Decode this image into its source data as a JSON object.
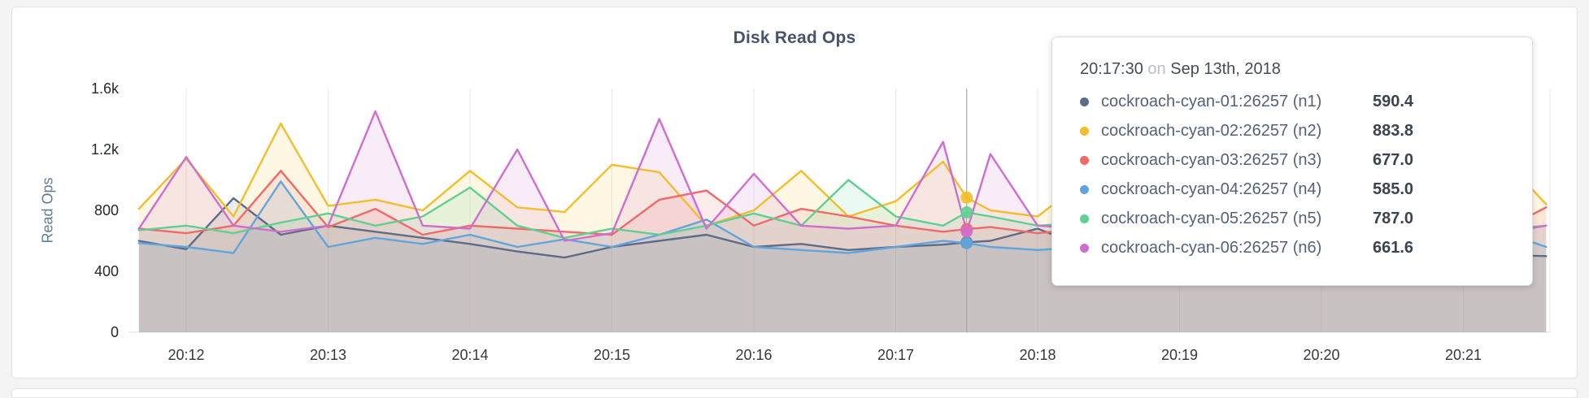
{
  "page": {
    "background_color": "#f4f4f4"
  },
  "panel": {
    "background_color": "#ffffff",
    "border_color": "#e3e3e3",
    "title_color": "#46536b"
  },
  "chart_data": {
    "type": "area",
    "title": "Disk Read Ops",
    "xlabel": "",
    "ylabel": "Read Ops",
    "ylim": [
      0,
      1600
    ],
    "grid": "vertical-only",
    "legend_position": "tooltip",
    "x_unit": "seconds since 20:11:40 on Sep 13th, 2018",
    "x": [
      0,
      20,
      40,
      60,
      80,
      100,
      120,
      140,
      160,
      180,
      200,
      220,
      240,
      260,
      280,
      300,
      320,
      340,
      350,
      360,
      380,
      400,
      420,
      440,
      460,
      480,
      500,
      520,
      540,
      560,
      580,
      595
    ],
    "x_ticks": [
      {
        "t": 20,
        "label": "20:12"
      },
      {
        "t": 80,
        "label": "20:13"
      },
      {
        "t": 140,
        "label": "20:14"
      },
      {
        "t": 200,
        "label": "20:15"
      },
      {
        "t": 260,
        "label": "20:16"
      },
      {
        "t": 320,
        "label": "20:17"
      },
      {
        "t": 380,
        "label": "20:18"
      },
      {
        "t": 440,
        "label": "20:19"
      },
      {
        "t": 500,
        "label": "20:20"
      },
      {
        "t": 560,
        "label": "20:21"
      }
    ],
    "y_ticks": [
      {
        "value": 0,
        "label": "0"
      },
      {
        "value": 400,
        "label": "400"
      },
      {
        "value": 800,
        "label": "800"
      },
      {
        "value": 1200,
        "label": "1.2k"
      },
      {
        "value": 1600,
        "label": "1.6k"
      }
    ],
    "crosshair_t": 350,
    "series": [
      {
        "id": "n1",
        "name": "cockroach-cyan-01:26257 (n1)",
        "color": "#5F6C87",
        "values": [
          600,
          545,
          880,
          640,
          700,
          660,
          620,
          580,
          530,
          490,
          560,
          600,
          640,
          560,
          580,
          540,
          560,
          575,
          590.4,
          600,
          680,
          560,
          540,
          560,
          520,
          555,
          530,
          545,
          560,
          500,
          505,
          500
        ]
      },
      {
        "id": "n2",
        "name": "cockroach-cyan-02:26257 (n2)",
        "color": "#F2BE2C",
        "values": [
          810,
          1140,
          760,
          1370,
          830,
          870,
          800,
          1060,
          820,
          790,
          1100,
          1050,
          700,
          800,
          1060,
          760,
          860,
          1120,
          883.8,
          800,
          760,
          1000,
          900,
          850,
          950,
          800,
          900,
          850,
          800,
          1000,
          1090,
          840
        ]
      },
      {
        "id": "n3",
        "name": "cockroach-cyan-03:26257 (n3)",
        "color": "#F16969",
        "values": [
          680,
          650,
          700,
          1060,
          690,
          810,
          640,
          700,
          680,
          660,
          640,
          870,
          930,
          700,
          810,
          760,
          700,
          660,
          677,
          690,
          650,
          680,
          700,
          720,
          690,
          660,
          700,
          680,
          650,
          930,
          700,
          820
        ]
      },
      {
        "id": "n4",
        "name": "cockroach-cyan-04:26257 (n4)",
        "color": "#61A5DC",
        "values": [
          585,
          560,
          520,
          990,
          560,
          620,
          580,
          640,
          560,
          610,
          560,
          640,
          740,
          560,
          540,
          520,
          560,
          600,
          585,
          560,
          540,
          560,
          580,
          560,
          540,
          570,
          560,
          550,
          560,
          620,
          640,
          560
        ]
      },
      {
        "id": "n5",
        "name": "cockroach-cyan-05:26257 (n5)",
        "color": "#5FD092",
        "values": [
          670,
          700,
          650,
          720,
          780,
          700,
          760,
          950,
          700,
          620,
          680,
          640,
          700,
          780,
          700,
          1000,
          760,
          700,
          787,
          760,
          700,
          720,
          680,
          700,
          720,
          690,
          700,
          680,
          700,
          650,
          680,
          700
        ]
      },
      {
        "id": "n6",
        "name": "cockroach-cyan-06:26257 (n6)",
        "color": "#CF6ECE",
        "values": [
          680,
          1150,
          700,
          660,
          700,
          1450,
          700,
          680,
          1200,
          600,
          650,
          1400,
          680,
          1040,
          700,
          680,
          700,
          1250,
          661.6,
          1170,
          700,
          680,
          720,
          900,
          700,
          680,
          700,
          690,
          680,
          700,
          660,
          700
        ]
      }
    ]
  },
  "tooltip": {
    "time": "20:17:30",
    "preposition": "on",
    "date": "Sep 13th, 2018",
    "entries": [
      {
        "label": "cockroach-cyan-01:26257 (n1)",
        "value": "590.4",
        "color": "#5F6C87"
      },
      {
        "label": "cockroach-cyan-02:26257 (n2)",
        "value": "883.8",
        "color": "#F2BE2C"
      },
      {
        "label": "cockroach-cyan-03:26257 (n3)",
        "value": "677.0",
        "color": "#F16969"
      },
      {
        "label": "cockroach-cyan-04:26257 (n4)",
        "value": "585.0",
        "color": "#61A5DC"
      },
      {
        "label": "cockroach-cyan-05:26257 (n5)",
        "value": "787.0",
        "color": "#5FD092"
      },
      {
        "label": "cockroach-cyan-06:26257 (n6)",
        "value": "661.6",
        "color": "#CF6ECE"
      }
    ]
  }
}
